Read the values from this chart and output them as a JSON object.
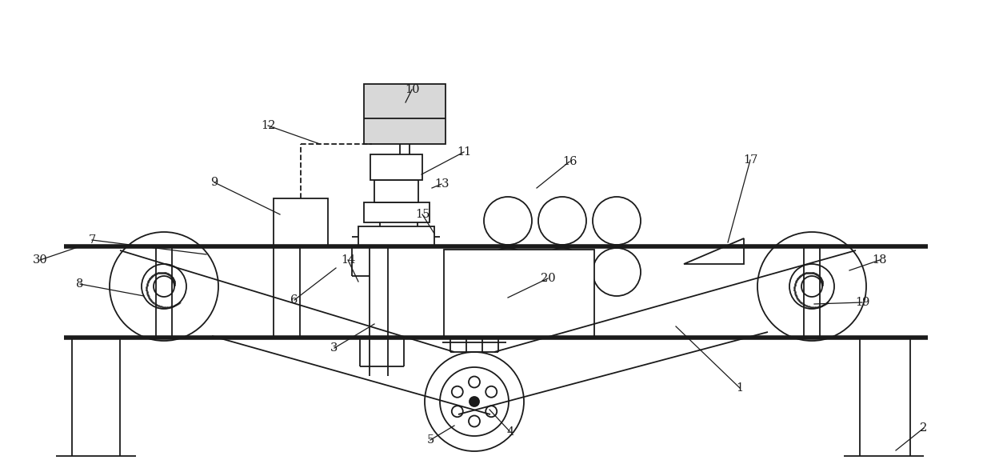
{
  "bg": "#ffffff",
  "lc": "#1a1a1a",
  "lw": 1.3,
  "tlw": 4.0,
  "fw": 12.39,
  "fh": 5.9,
  "xmax": 12.39,
  "ymax": 5.9
}
